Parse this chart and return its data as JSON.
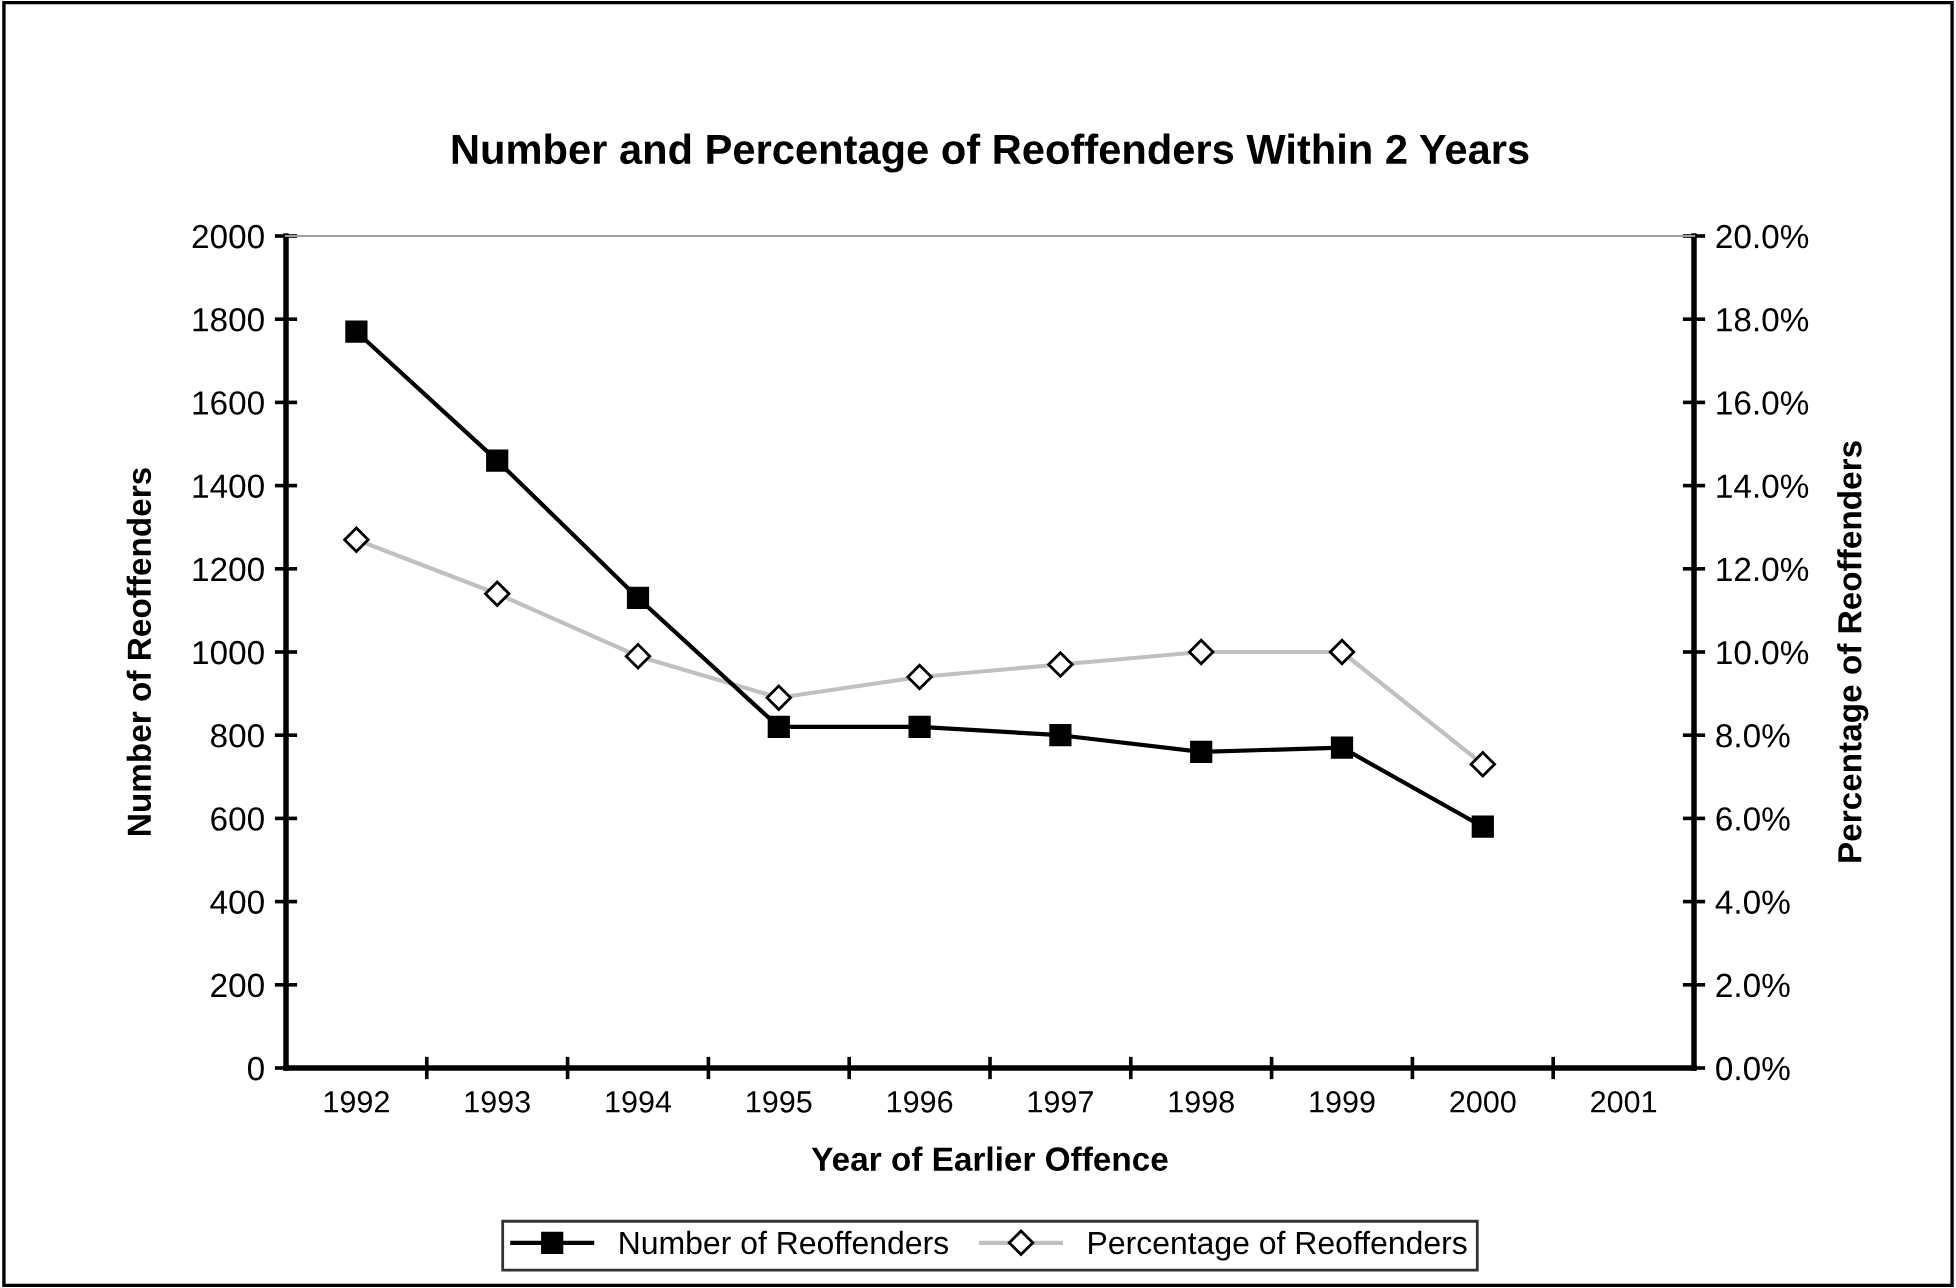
{
  "chart_data": {
    "type": "line",
    "title": "Number and Percentage of Reoffenders Within 2 Years",
    "xlabel": "Year of Earlier Offence",
    "ylabel": "Number of Reoffenders",
    "y2label": "Percentage of Reoffenders",
    "categories": [
      "1992",
      "1993",
      "1994",
      "1995",
      "1996",
      "1997",
      "1998",
      "1999",
      "2000",
      "2001"
    ],
    "series": [
      {
        "name": "Number of Reoffenders",
        "color": "#000000",
        "marker": "square",
        "values": [
          1770,
          1460,
          1130,
          820,
          820,
          800,
          760,
          770,
          580,
          null
        ]
      },
      {
        "name": "Percentage of Reoffenders",
        "color": "#c0c0c0",
        "marker": "diamond",
        "axis": "y2",
        "values": [
          12.7,
          11.4,
          9.9,
          8.9,
          9.4,
          9.7,
          10.0,
          10.0,
          7.3,
          null
        ]
      }
    ],
    "ylim": [
      0,
      2000
    ],
    "yticks": [
      0,
      200,
      400,
      600,
      800,
      1000,
      1200,
      1400,
      1600,
      1800,
      2000
    ],
    "y2lim": [
      0,
      20
    ],
    "y2ticks": [
      {
        "value": 0,
        "label": "0.0%"
      },
      {
        "value": 2,
        "label": "2.0%"
      },
      {
        "value": 4,
        "label": "4.0%"
      },
      {
        "value": 6,
        "label": "6.0%"
      },
      {
        "value": 8,
        "label": "8.0%"
      },
      {
        "value": 10,
        "label": "10.0%"
      },
      {
        "value": 12,
        "label": "12.0%"
      },
      {
        "value": 14,
        "label": "14.0%"
      },
      {
        "value": 16,
        "label": "16.0%"
      },
      {
        "value": 18,
        "label": "18.0%"
      },
      {
        "value": 20,
        "label": "20.0%"
      }
    ],
    "grid": false,
    "legend": "bottom",
    "line_style": "solid"
  }
}
